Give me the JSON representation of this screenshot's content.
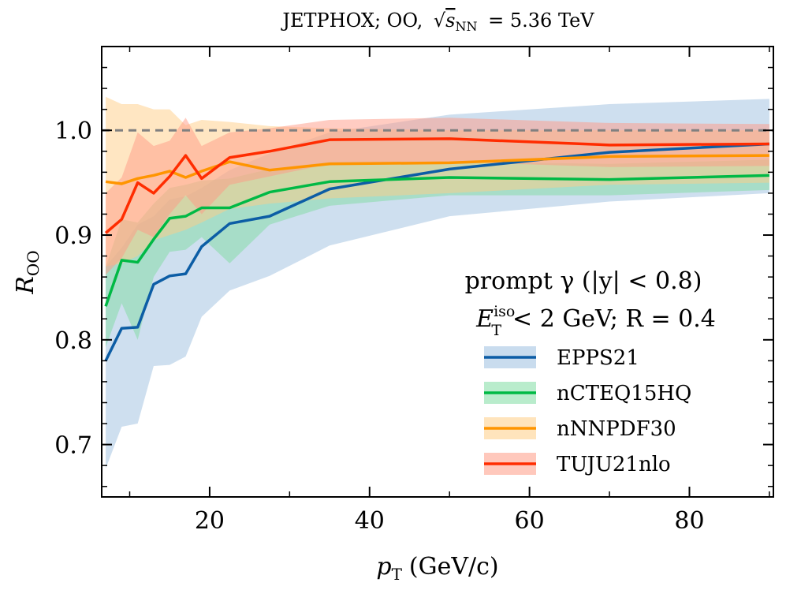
{
  "chart_data": {
    "type": "line",
    "title_parts": {
      "prefix": "JETPHOX; OO,",
      "sqrt_s": "s",
      "sqrt_sub": "NN",
      "value": "= 5.36 TeV"
    },
    "xlabel": {
      "symbol": "p",
      "sub": "T",
      "unit": "(GeV/c)"
    },
    "ylabel": {
      "symbol": "R",
      "sub": "OO"
    },
    "xlim": [
      6.5,
      90.5
    ],
    "ylim": [
      0.65,
      1.08
    ],
    "xticks": [
      20,
      40,
      60,
      80
    ],
    "xtick_labels": [
      "20",
      "40",
      "60",
      "80"
    ],
    "yticks": [
      0.7,
      0.8,
      0.9,
      1.0
    ],
    "ytick_labels": [
      "0.7",
      "0.8",
      "0.9",
      "1.0"
    ],
    "reference_line": 1.0,
    "annotation": {
      "line1": "prompt γ (|y| < 0.8)",
      "line2_E": "E",
      "line2_sup": "iso",
      "line2_sub": "T",
      "line2_rest": "< 2 GeV; R = 0.4"
    },
    "legend_position": "lower-right",
    "series": [
      {
        "name": "EPPS21",
        "color": "#0C5DA5",
        "band_color": "#9dbfe0",
        "x": [
          7,
          9,
          11,
          13,
          15,
          17,
          19,
          22.5,
          27.5,
          35,
          50,
          70,
          90
        ],
        "y": [
          0.78,
          0.811,
          0.812,
          0.853,
          0.861,
          0.863,
          0.889,
          0.911,
          0.918,
          0.944,
          0.963,
          0.979,
          0.987
        ],
        "upper": [
          0.87,
          0.888,
          0.91,
          0.918,
          0.934,
          0.937,
          0.945,
          0.962,
          0.978,
          0.998,
          1.015,
          1.025,
          1.03
        ],
        "lower": [
          0.677,
          0.717,
          0.72,
          0.775,
          0.776,
          0.784,
          0.822,
          0.847,
          0.861,
          0.89,
          0.918,
          0.932,
          0.94
        ]
      },
      {
        "name": "nCTEQ15HQ",
        "color": "#00B945",
        "band_color": "#7fdca2",
        "x": [
          7,
          9,
          11,
          13,
          15,
          17,
          19,
          22.5,
          27.5,
          35,
          50,
          70,
          90
        ],
        "y": [
          0.832,
          0.876,
          0.874,
          0.896,
          0.916,
          0.918,
          0.926,
          0.926,
          0.941,
          0.951,
          0.955,
          0.953,
          0.957
        ],
        "upper": [
          0.87,
          0.915,
          0.912,
          0.93,
          0.945,
          0.948,
          0.952,
          0.954,
          0.963,
          0.97,
          0.97,
          0.968,
          0.972
        ],
        "lower": [
          0.793,
          0.835,
          0.8,
          0.86,
          0.884,
          0.886,
          0.898,
          0.873,
          0.91,
          0.928,
          0.938,
          0.938,
          0.943
        ]
      },
      {
        "name": "nNNPDF30",
        "color": "#FF9500",
        "band_color": "#ffcd85",
        "x": [
          7,
          9,
          11,
          13,
          15,
          17,
          19,
          22.5,
          27.5,
          35,
          50,
          70,
          90
        ],
        "y": [
          0.951,
          0.949,
          0.954,
          0.957,
          0.961,
          0.955,
          0.961,
          0.97,
          0.962,
          0.968,
          0.969,
          0.975,
          0.976
        ],
        "upper": [
          1.032,
          1.025,
          1.025,
          1.02,
          1.02,
          1.005,
          1.01,
          1.008,
          1.004,
          1.002,
          1.0,
          1.0,
          1.0
        ],
        "lower": [
          0.87,
          0.873,
          0.88,
          0.895,
          0.9,
          0.905,
          0.912,
          0.925,
          0.93,
          0.935,
          0.94,
          0.948,
          0.95
        ]
      },
      {
        "name": "TUJU21nlo",
        "color": "#FF2C00",
        "band_color": "#ff9a85",
        "x": [
          7,
          9,
          11,
          13,
          15,
          17,
          19,
          22.5,
          27.5,
          35,
          50,
          70,
          90
        ],
        "y": [
          0.902,
          0.915,
          0.95,
          0.94,
          0.956,
          0.976,
          0.954,
          0.974,
          0.98,
          0.991,
          0.992,
          0.986,
          0.987
        ],
        "upper": [
          0.94,
          0.955,
          0.998,
          0.985,
          0.99,
          1.012,
          0.985,
          0.998,
          1.002,
          1.01,
          1.012,
          1.007,
          1.006
        ],
        "lower": [
          0.862,
          0.878,
          0.905,
          0.898,
          0.92,
          0.938,
          0.92,
          0.948,
          0.956,
          0.968,
          0.97,
          0.965,
          0.966
        ]
      }
    ]
  }
}
